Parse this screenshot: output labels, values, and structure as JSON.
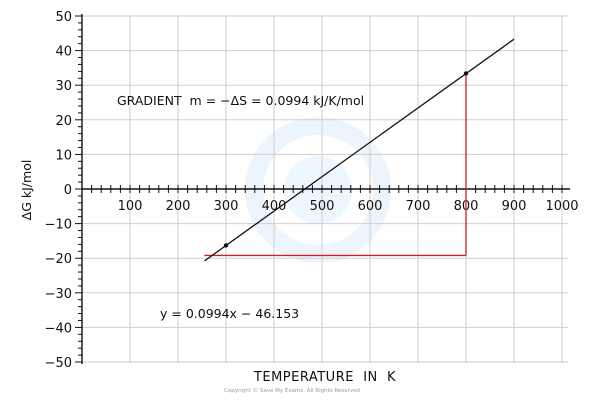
{
  "chart_data": {
    "type": "line",
    "xlabel": "TEMPERATURE  IN  K",
    "ylabel": "ΔG kJ/mol",
    "xlim": [
      0,
      1000
    ],
    "ylim": [
      -50,
      50
    ],
    "x_ticks": [
      100,
      200,
      300,
      400,
      500,
      600,
      700,
      800,
      900,
      1000
    ],
    "y_ticks": [
      50,
      40,
      30,
      20,
      10,
      0,
      -10,
      -20,
      -30,
      -40,
      -50
    ],
    "y_tick_labels": [
      "50",
      "40",
      "30",
      "20",
      "10",
      "0",
      "−10",
      "−20",
      "−30",
      "−40",
      "−50"
    ],
    "grid": true,
    "series": [
      {
        "color": "#111111",
        "x": [
          255,
          900
        ],
        "y": [
          -20.8,
          43.3
        ],
        "markers": [
          {
            "x": 300,
            "y": -16.3
          },
          {
            "x": 800,
            "y": 33.4
          }
        ]
      }
    ],
    "gradient_triangle": {
      "color": "#cc1f2a",
      "x": [
        255,
        800
      ],
      "y": [
        -19.2,
        33.4
      ]
    },
    "annotations": {
      "gradient": "GRADIENT  m = −ΔS = 0.0994 kJ/K/mol",
      "equation": "y = 0.0994x − 46.153"
    },
    "copyright": "Copyright © Save My Exams. All Rights Reserved"
  }
}
